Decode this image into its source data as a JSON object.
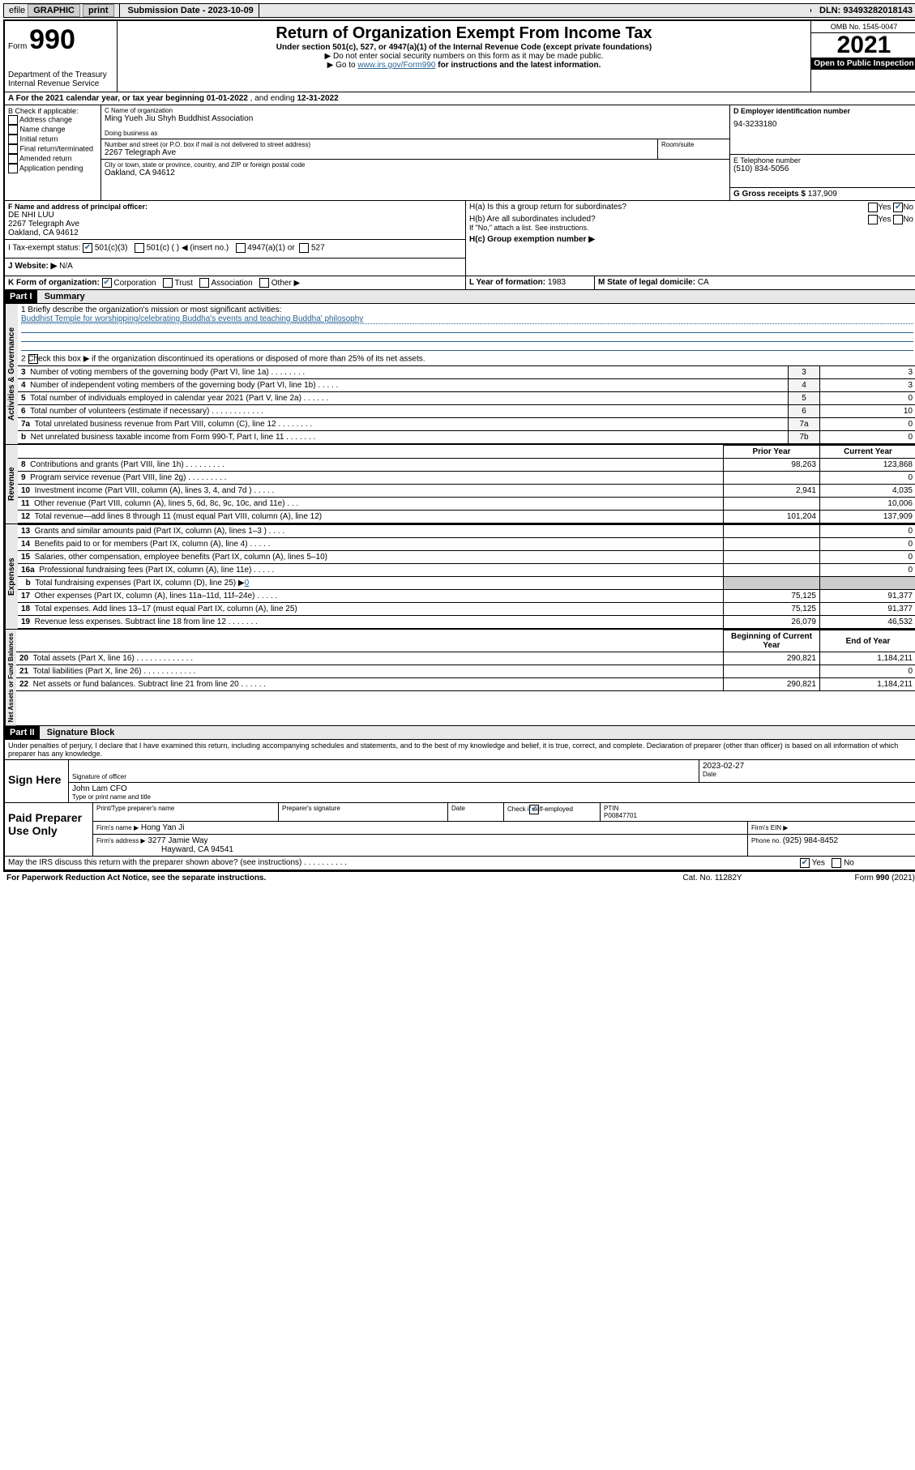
{
  "topbar": {
    "efile_prefix": "efile",
    "efile_graphic": "GRAPHIC",
    "print": "print",
    "submission_date_label": "Submission Date - ",
    "submission_date": "2023-10-09",
    "dln_label": "DLN: ",
    "dln": "93493282018143"
  },
  "header": {
    "form_word": "Form",
    "form_number": "990",
    "dept1": "Department of the Treasury",
    "dept2": "Internal Revenue Service",
    "title": "Return of Organization Exempt From Income Tax",
    "subtitle": "Under section 501(c), 527, or 4947(a)(1) of the Internal Revenue Code (except private foundations)",
    "note1": "▶ Do not enter social security numbers on this form as it may be made public.",
    "note2_prefix": "▶ Go to ",
    "note2_link": "www.irs.gov/Form990",
    "note2_suffix": " for instructions and the latest information.",
    "omb": "OMB No. 1545-0047",
    "year": "2021",
    "inspection": "Open to Public Inspection"
  },
  "lineA": {
    "prefix": "A For the 2021 calendar year, or tax year beginning ",
    "begin": "01-01-2022",
    "mid": " , and ending ",
    "end": "12-31-2022"
  },
  "B": {
    "label": "B Check if applicable:",
    "opts": [
      "Address change",
      "Name change",
      "Initial return",
      "Final return/terminated",
      "Amended return",
      "Application pending"
    ]
  },
  "C": {
    "name_label": "C Name of organization",
    "name": "Ming Yueh Jiu Shyh Buddhist Association",
    "dba_label": "Doing business as",
    "street_label": "Number and street (or P.O. box if mail is not delivered to street address)",
    "room_label": "Room/suite",
    "street": "2267 Telegraph Ave",
    "city_label": "City or town, state or province, country, and ZIP or foreign postal code",
    "city": "Oakland, CA  94612"
  },
  "D": {
    "label": "D Employer identification number",
    "value": "94-3233180"
  },
  "E": {
    "label": "E Telephone number",
    "value": "(510) 834-5056"
  },
  "G": {
    "label": "G Gross receipts $ ",
    "value": "137,909"
  },
  "F": {
    "label": "F Name and address of principal officer:",
    "name": "DE NHI LUU",
    "addr1": "2267 Telegraph Ave",
    "addr2": "Oakland, CA  94612"
  },
  "H": {
    "a_label": "H(a)  Is this a group return for subordinates?",
    "b_label": "H(b)  Are all subordinates included?",
    "b_note": "If \"No,\" attach a list. See instructions.",
    "c_label": "H(c)  Group exemption number ▶",
    "yes": "Yes",
    "no": "No"
  },
  "I": {
    "label": "I   Tax-exempt status:",
    "opt1": "501(c)(3)",
    "opt2": "501(c) (   ) ◀ (insert no.)",
    "opt3": "4947(a)(1) or",
    "opt4": "527"
  },
  "J": {
    "label": "J   Website: ▶",
    "value": "N/A"
  },
  "K": {
    "label": "K Form of organization:",
    "opts": [
      "Corporation",
      "Trust",
      "Association",
      "Other ▶"
    ]
  },
  "L": {
    "label": "L Year of formation: ",
    "value": "1983"
  },
  "M": {
    "label": "M State of legal domicile: ",
    "value": "CA"
  },
  "part1": {
    "header": "Part I",
    "title": "Summary",
    "q1_label": "1  Briefly describe the organization's mission or most significant activities:",
    "q1_value": "Buddhist Temple for worshipping/celebrating Buddha's events and teaching Buddha' philosophy",
    "q2": "2  Check this box ▶       if the organization discontinued its operations or disposed of more than 25% of its net assets.",
    "governance_rows": [
      {
        "n": "3",
        "text": "Number of voting members of the governing body (Part VI, line 1a)   .    .    .    .    .    .    .    .",
        "label": "3",
        "val": "3"
      },
      {
        "n": "4",
        "text": "Number of independent voting members of the governing body (Part VI, line 1b)   .    .    .    .    .",
        "label": "4",
        "val": "3"
      },
      {
        "n": "5",
        "text": "Total number of individuals employed in calendar year 2021 (Part V, line 2a)   .    .    .    .    .    .",
        "label": "5",
        "val": "0"
      },
      {
        "n": "6",
        "text": "Total number of volunteers (estimate if necessary)   .    .    .    .    .    .    .    .    .    .    .    .",
        "label": "6",
        "val": "10"
      },
      {
        "n": "7a",
        "text": "Total unrelated business revenue from Part VIII, column (C), line 12   .    .    .    .    .    .    .    .",
        "label": "7a",
        "val": "0"
      },
      {
        "n": "b",
        "text": "Net unrelated business taxable income from Form 990-T, Part I, line 11   .    .    .    .    .    .    .",
        "label": "7b",
        "val": "0"
      }
    ],
    "col_prior": "Prior Year",
    "col_current": "Current Year",
    "revenue_rows": [
      {
        "n": "8",
        "text": "Contributions and grants (Part VIII, line 1h)   .    .    .    .    .    .    .    .    .",
        "prior": "98,263",
        "curr": "123,868"
      },
      {
        "n": "9",
        "text": "Program service revenue (Part VIII, line 2g)   .    .    .    .    .    .    .    .    .",
        "prior": "",
        "curr": "0"
      },
      {
        "n": "10",
        "text": "Investment income (Part VIII, column (A), lines 3, 4, and 7d )   .    .    .    .    .",
        "prior": "2,941",
        "curr": "4,035"
      },
      {
        "n": "11",
        "text": "Other revenue (Part VIII, column (A), lines 5, 6d, 8c, 9c, 10c, and 11e)   .    .    .",
        "prior": "",
        "curr": "10,006"
      },
      {
        "n": "12",
        "text": "Total revenue—add lines 8 through 11 (must equal Part VIII, column (A), line 12)",
        "prior": "101,204",
        "curr": "137,909"
      }
    ],
    "expense_rows": [
      {
        "n": "13",
        "text": "Grants and similar amounts paid (Part IX, column (A), lines 1–3 )   .    .    .    .",
        "prior": "",
        "curr": "0"
      },
      {
        "n": "14",
        "text": "Benefits paid to or for members (Part IX, column (A), line 4)   .    .    .    .    .",
        "prior": "",
        "curr": "0"
      },
      {
        "n": "15",
        "text": "Salaries, other compensation, employee benefits (Part IX, column (A), lines 5–10)",
        "prior": "",
        "curr": "0"
      },
      {
        "n": "16a",
        "text": "Professional fundraising fees (Part IX, column (A), line 11e)   .    .    .    .    .",
        "prior": "",
        "curr": "0"
      }
    ],
    "line16b_n": "b",
    "line16b": "Total fundraising expenses (Part IX, column (D), line 25) ▶",
    "line16b_val": "0",
    "expense_rows2": [
      {
        "n": "17",
        "text": "Other expenses (Part IX, column (A), lines 11a–11d, 11f–24e)   .    .    .    .    .",
        "prior": "75,125",
        "curr": "91,377"
      },
      {
        "n": "18",
        "text": "Total expenses. Add lines 13–17 (must equal Part IX, column (A), line 25)",
        "prior": "75,125",
        "curr": "91,377"
      },
      {
        "n": "19",
        "text": "Revenue less expenses. Subtract line 18 from line 12   .    .    .    .    .    .    .",
        "prior": "26,079",
        "curr": "46,532"
      }
    ],
    "col_begin": "Beginning of Current Year",
    "col_end": "End of Year",
    "balance_rows": [
      {
        "n": "20",
        "text": "Total assets (Part X, line 16)   .    .    .    .    .    .    .    .    .    .    .    .    .",
        "prior": "290,821",
        "curr": "1,184,211"
      },
      {
        "n": "21",
        "text": "Total liabilities (Part X, line 26)   .    .    .    .    .    .    .    .    .    .    .    .",
        "prior": "",
        "curr": "0"
      },
      {
        "n": "22",
        "text": "Net assets or fund balances. Subtract line 21 from line 20   .    .    .    .    .    .",
        "prior": "290,821",
        "curr": "1,184,211"
      }
    ]
  },
  "part2": {
    "header": "Part II",
    "title": "Signature Block",
    "perjury": "Under penalties of perjury, I declare that I have examined this return, including accompanying schedules and statements, and to the best of my knowledge and belief, it is true, correct, and complete. Declaration of preparer (other than officer) is based on all information of which preparer has any knowledge."
  },
  "sign": {
    "label": "Sign Here",
    "sig_label": "Signature of officer",
    "date_label": "Date",
    "date": "2023-02-27",
    "name": "John Lam  CFO",
    "name_label": "Type or print name and title"
  },
  "preparer": {
    "label": "Paid Preparer Use Only",
    "col1": "Print/Type preparer's name",
    "col2": "Preparer's signature",
    "col3": "Date",
    "check_label": "Check         if self-employed",
    "ptin_label": "PTIN",
    "ptin": "P00847701",
    "firm_name_label": "Firm's name      ▶",
    "firm_name": "Hong Yan Ji",
    "firm_ein_label": "Firm's EIN ▶",
    "firm_addr_label": "Firm's address ▶",
    "firm_addr1": "3277 Jamie Way",
    "firm_addr2": "Hayward, CA  94541",
    "phone_label": "Phone no. ",
    "phone": "(925) 984-8452"
  },
  "footer": {
    "discuss": "May the IRS discuss this return with the preparer shown above? (see instructions)    .    .    .    .    .    .    .    .    .    .",
    "yes": "Yes",
    "no": "No",
    "paperwork": "For Paperwork Reduction Act Notice, see the separate instructions.",
    "cat": "Cat. No. 11282Y",
    "formref": "Form 990 (2021)"
  },
  "vlabels": {
    "gov": "Activities & Governance",
    "rev": "Revenue",
    "exp": "Expenses",
    "bal": "Net Assets or Fund Balances"
  }
}
